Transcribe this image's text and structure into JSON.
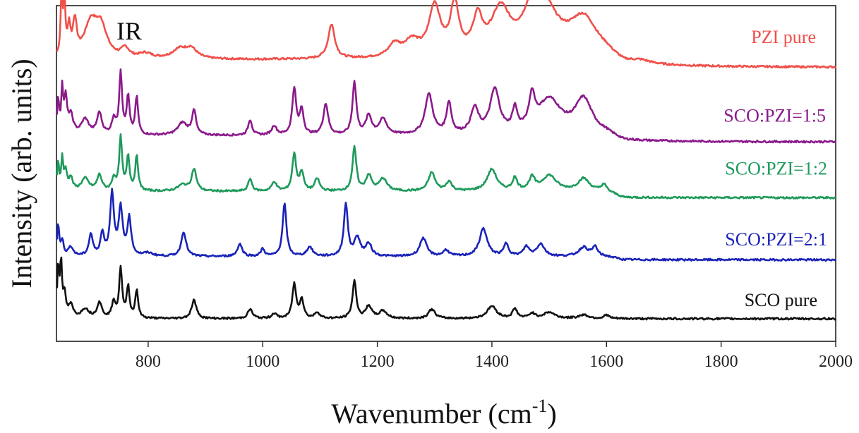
{
  "chart_data": {
    "type": "line",
    "panel_label": "IR",
    "xlabel": "Wavenumber (cm",
    "xlabel_sup": "-1",
    "xlabel_close": ")",
    "ylabel": "Intensity (arb. units)",
    "xlim": [
      640,
      2000
    ],
    "xticks": [
      800,
      1000,
      1200,
      1400,
      1600,
      1800,
      2000
    ],
    "grid": false,
    "legend": "labels placed to the right of each trace",
    "series": [
      {
        "name": "PZI pure",
        "color": "#f0504a",
        "offset": 4.05,
        "baseline": 0.12,
        "peaks": [
          [
            649,
            1.0,
            2
          ],
          [
            654,
            0.8,
            2
          ],
          [
            662,
            0.45,
            3
          ],
          [
            672,
            0.55,
            4
          ],
          [
            700,
            0.55,
            14
          ],
          [
            718,
            0.45,
            12
          ],
          [
            760,
            0.15,
            8
          ],
          [
            795,
            0.08,
            14
          ],
          [
            855,
            0.15,
            16
          ],
          [
            875,
            0.15,
            12
          ],
          [
            1120,
            0.55,
            7
          ],
          [
            1230,
            0.2,
            12
          ],
          [
            1260,
            0.25,
            16
          ],
          [
            1300,
            0.8,
            12
          ],
          [
            1335,
            0.8,
            9
          ],
          [
            1375,
            0.55,
            10
          ],
          [
            1415,
            0.7,
            20
          ],
          [
            1470,
            0.45,
            18
          ],
          [
            1490,
            0.75,
            30
          ],
          [
            1560,
            0.6,
            30
          ],
          [
            1660,
            0.05,
            20
          ]
        ]
      },
      {
        "name": "SCO:PZI=1:5",
        "color": "#8b1a8b",
        "offset": 2.85,
        "baseline": 0.1,
        "peaks": [
          [
            643,
            0.55,
            2
          ],
          [
            650,
            0.7,
            2
          ],
          [
            656,
            0.55,
            3
          ],
          [
            665,
            0.3,
            5
          ],
          [
            690,
            0.25,
            8
          ],
          [
            715,
            0.35,
            5
          ],
          [
            740,
            0.25,
            4
          ],
          [
            752,
            1.0,
            3
          ],
          [
            765,
            0.6,
            3
          ],
          [
            780,
            0.6,
            3
          ],
          [
            860,
            0.2,
            10
          ],
          [
            880,
            0.4,
            4
          ],
          [
            978,
            0.25,
            4
          ],
          [
            1020,
            0.15,
            5
          ],
          [
            1055,
            0.75,
            4
          ],
          [
            1068,
            0.4,
            4
          ],
          [
            1110,
            0.5,
            5
          ],
          [
            1160,
            0.85,
            4
          ],
          [
            1185,
            0.3,
            6
          ],
          [
            1210,
            0.25,
            8
          ],
          [
            1290,
            0.65,
            8
          ],
          [
            1325,
            0.5,
            5
          ],
          [
            1370,
            0.4,
            8
          ],
          [
            1405,
            0.7,
            10
          ],
          [
            1440,
            0.35,
            5
          ],
          [
            1470,
            0.5,
            6
          ],
          [
            1500,
            0.55,
            25
          ],
          [
            1560,
            0.55,
            18
          ]
        ]
      },
      {
        "name": "SCO:PZI=1:2",
        "color": "#1f9a5c",
        "offset": 1.95,
        "baseline": 0.1,
        "peaks": [
          [
            643,
            0.45,
            2
          ],
          [
            650,
            0.5,
            2
          ],
          [
            656,
            0.3,
            3
          ],
          [
            665,
            0.2,
            4
          ],
          [
            690,
            0.2,
            8
          ],
          [
            715,
            0.25,
            5
          ],
          [
            740,
            0.2,
            4
          ],
          [
            752,
            0.85,
            3
          ],
          [
            765,
            0.55,
            3
          ],
          [
            780,
            0.55,
            3
          ],
          [
            860,
            0.1,
            10
          ],
          [
            880,
            0.35,
            5
          ],
          [
            978,
            0.2,
            4
          ],
          [
            1020,
            0.15,
            5
          ],
          [
            1055,
            0.6,
            4
          ],
          [
            1068,
            0.3,
            4
          ],
          [
            1095,
            0.2,
            5
          ],
          [
            1160,
            0.7,
            4
          ],
          [
            1185,
            0.25,
            6
          ],
          [
            1210,
            0.2,
            8
          ],
          [
            1295,
            0.3,
            7
          ],
          [
            1325,
            0.15,
            6
          ],
          [
            1400,
            0.35,
            10
          ],
          [
            1440,
            0.2,
            5
          ],
          [
            1470,
            0.2,
            6
          ],
          [
            1500,
            0.25,
            15
          ],
          [
            1560,
            0.2,
            12
          ],
          [
            1595,
            0.1,
            5
          ]
        ]
      },
      {
        "name": "SCO:PZI=2:1",
        "color": "#1a23b8",
        "offset": 0.95,
        "baseline": 0.05,
        "peaks": [
          [
            643,
            0.5,
            2
          ],
          [
            650,
            0.25,
            3
          ],
          [
            665,
            0.15,
            5
          ],
          [
            700,
            0.35,
            4
          ],
          [
            720,
            0.35,
            4
          ],
          [
            737,
            1.0,
            4
          ],
          [
            752,
            0.75,
            4
          ],
          [
            767,
            0.6,
            4
          ],
          [
            800,
            0.05,
            10
          ],
          [
            862,
            0.4,
            5
          ],
          [
            960,
            0.2,
            5
          ],
          [
            1000,
            0.12,
            4
          ],
          [
            1038,
            0.85,
            4
          ],
          [
            1082,
            0.15,
            6
          ],
          [
            1145,
            0.85,
            4
          ],
          [
            1165,
            0.3,
            6
          ],
          [
            1185,
            0.2,
            6
          ],
          [
            1280,
            0.3,
            7
          ],
          [
            1320,
            0.1,
            6
          ],
          [
            1385,
            0.45,
            8
          ],
          [
            1425,
            0.2,
            5
          ],
          [
            1460,
            0.15,
            6
          ],
          [
            1485,
            0.2,
            8
          ],
          [
            1560,
            0.15,
            10
          ],
          [
            1580,
            0.15,
            5
          ]
        ]
      },
      {
        "name": "SCO pure",
        "color": "#111111",
        "offset": 0.0,
        "baseline": 0.0,
        "peaks": [
          [
            643,
            0.8,
            2
          ],
          [
            648,
            0.85,
            2
          ],
          [
            654,
            0.35,
            3
          ],
          [
            665,
            0.2,
            5
          ],
          [
            690,
            0.15,
            8
          ],
          [
            715,
            0.25,
            5
          ],
          [
            740,
            0.25,
            4
          ],
          [
            752,
            0.8,
            3
          ],
          [
            765,
            0.5,
            3
          ],
          [
            780,
            0.45,
            3
          ],
          [
            880,
            0.3,
            5
          ],
          [
            978,
            0.15,
            5
          ],
          [
            1020,
            0.08,
            5
          ],
          [
            1055,
            0.55,
            4
          ],
          [
            1068,
            0.3,
            4
          ],
          [
            1095,
            0.1,
            5
          ],
          [
            1160,
            0.6,
            4
          ],
          [
            1185,
            0.2,
            6
          ],
          [
            1210,
            0.12,
            8
          ],
          [
            1295,
            0.15,
            7
          ],
          [
            1400,
            0.2,
            10
          ],
          [
            1440,
            0.15,
            5
          ],
          [
            1470,
            0.08,
            6
          ],
          [
            1500,
            0.1,
            12
          ],
          [
            1560,
            0.06,
            10
          ],
          [
            1600,
            0.06,
            5
          ]
        ]
      }
    ]
  }
}
